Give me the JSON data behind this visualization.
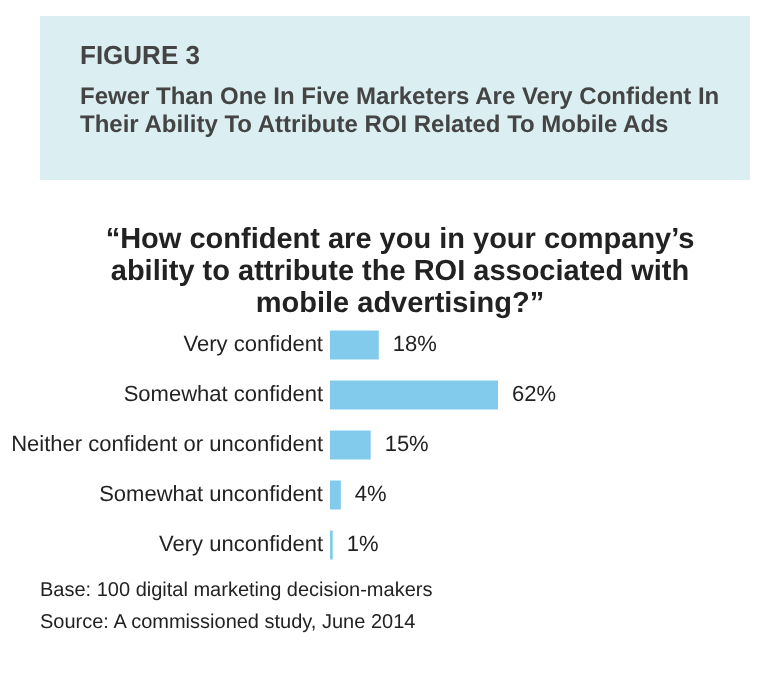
{
  "chart_data": {
    "type": "bar",
    "orientation": "horizontal",
    "title": "FIGURE 3",
    "subtitle": "Fewer Than One In Five Marketers Are Very Confident In Their Ability To Attribute ROI Related To Mobile Ads",
    "categories": [
      "Very confident",
      "Somewhat confident",
      "Neither confident or unconfident",
      "Somewhat unconfident",
      "Very unconfident"
    ],
    "values": [
      18,
      62,
      15,
      4,
      1
    ],
    "value_labels": [
      "18%",
      "62%",
      "15%",
      "4%",
      "1%"
    ],
    "color": "#82cbec",
    "annotations": [
      "“How confident are you in your company’s ability to attribute the ROI associated with mobile advertising?”",
      "Base: 100 digital marketing decision-makers",
      "Source: A commissioned study, June 2014"
    ]
  }
}
